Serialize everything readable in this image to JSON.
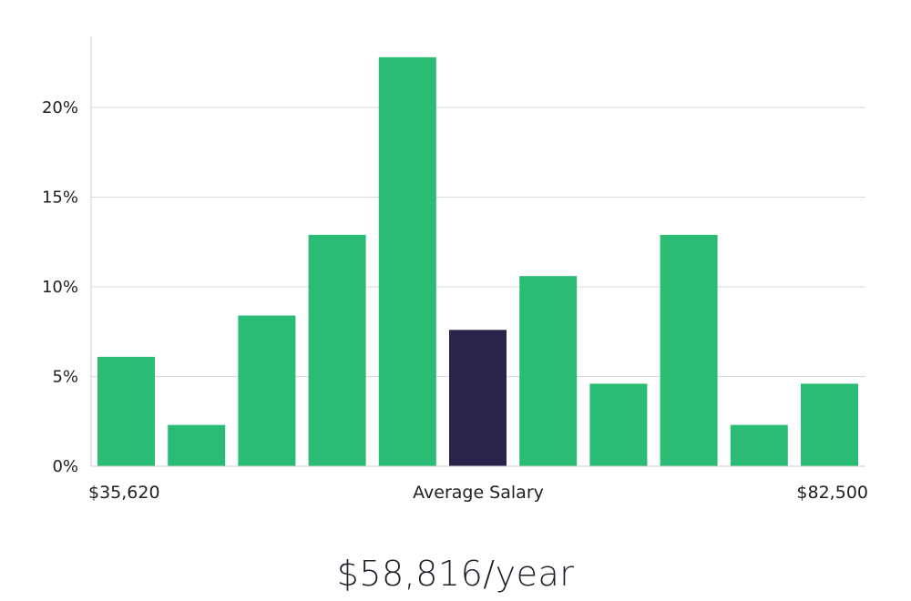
{
  "chart_data": {
    "type": "bar",
    "values": [
      6.1,
      2.3,
      8.4,
      12.9,
      22.8,
      7.6,
      10.6,
      4.6,
      12.9,
      2.3,
      4.6
    ],
    "highlight_index": 5,
    "y_ticks": [
      "0%",
      "5%",
      "10%",
      "15%",
      "20%"
    ],
    "ylim": [
      0,
      24
    ],
    "x_labels": {
      "left": "$35,620",
      "center": "Average Salary",
      "right": "$82,500"
    },
    "grid": true,
    "colors": {
      "bar": "#2abb74",
      "highlight": "#28244a",
      "grid": "#d9d9d9",
      "axis": "#cfcfcf"
    }
  },
  "summary": {
    "average": "$58,816/year"
  }
}
